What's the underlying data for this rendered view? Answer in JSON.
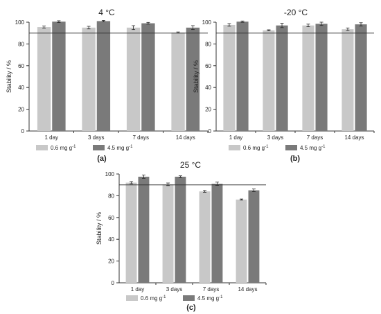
{
  "panel_labels": [
    "(a)",
    "(b)",
    "(c)"
  ],
  "chart_data": [
    {
      "type": "bar",
      "title": "4 °C",
      "ylabel": "Stability / %",
      "categories": [
        "1 day",
        "3 days",
        "7 days",
        "14 days"
      ],
      "ylim": [
        0,
        100
      ],
      "yticks": [
        0,
        20,
        40,
        60,
        80,
        100
      ],
      "reference_line": 90,
      "series": [
        {
          "name": "0.6 mg g",
          "values": [
            95.5,
            95,
            95,
            90.5
          ],
          "errors": [
            1,
            1.2,
            1.8,
            0.5
          ]
        },
        {
          "name": "4.5 mg g",
          "values": [
            100.5,
            101,
            99,
            95
          ],
          "errors": [
            0.8,
            0.6,
            0.8,
            1.8
          ]
        }
      ],
      "legend_position": "bottom",
      "colors": [
        "#c8c8c8",
        "#7a7a7a"
      ]
    },
    {
      "type": "bar",
      "title": "-20 °C",
      "ylabel": "Stability / %",
      "categories": [
        "1 day",
        "3 days",
        "7 days",
        "14 days"
      ],
      "ylim": [
        0,
        100
      ],
      "yticks": [
        0,
        20,
        40,
        60,
        80,
        100
      ],
      "reference_line": 90,
      "series": [
        {
          "name": "0.6 mg g",
          "values": [
            97.5,
            92.5,
            97,
            93.5
          ],
          "errors": [
            1.2,
            0.5,
            1.2,
            1.2
          ]
        },
        {
          "name": "4.5 mg g",
          "values": [
            100.5,
            97,
            98.5,
            98
          ],
          "errors": [
            0.6,
            2,
            1.5,
            1.5
          ]
        }
      ],
      "legend_position": "bottom",
      "colors": [
        "#c8c8c8",
        "#7a7a7a"
      ]
    },
    {
      "type": "bar",
      "title": "25 °C",
      "ylabel": "Stability / %",
      "categories": [
        "1 day",
        "3 days",
        "7 days",
        "14 days"
      ],
      "ylim": [
        0,
        100
      ],
      "yticks": [
        0,
        20,
        40,
        60,
        80,
        100
      ],
      "reference_line": 90,
      "series": [
        {
          "name": "0.6 mg g",
          "values": [
            92,
            90.5,
            84,
            76.5
          ],
          "errors": [
            1,
            1.2,
            0.8,
            0.5
          ]
        },
        {
          "name": "4.5 mg g",
          "values": [
            97.5,
            97.5,
            91,
            85
          ],
          "errors": [
            1.5,
            0.8,
            1.5,
            1.2
          ]
        }
      ],
      "legend_position": "bottom",
      "colors": [
        "#c8c8c8",
        "#7a7a7a"
      ]
    }
  ]
}
